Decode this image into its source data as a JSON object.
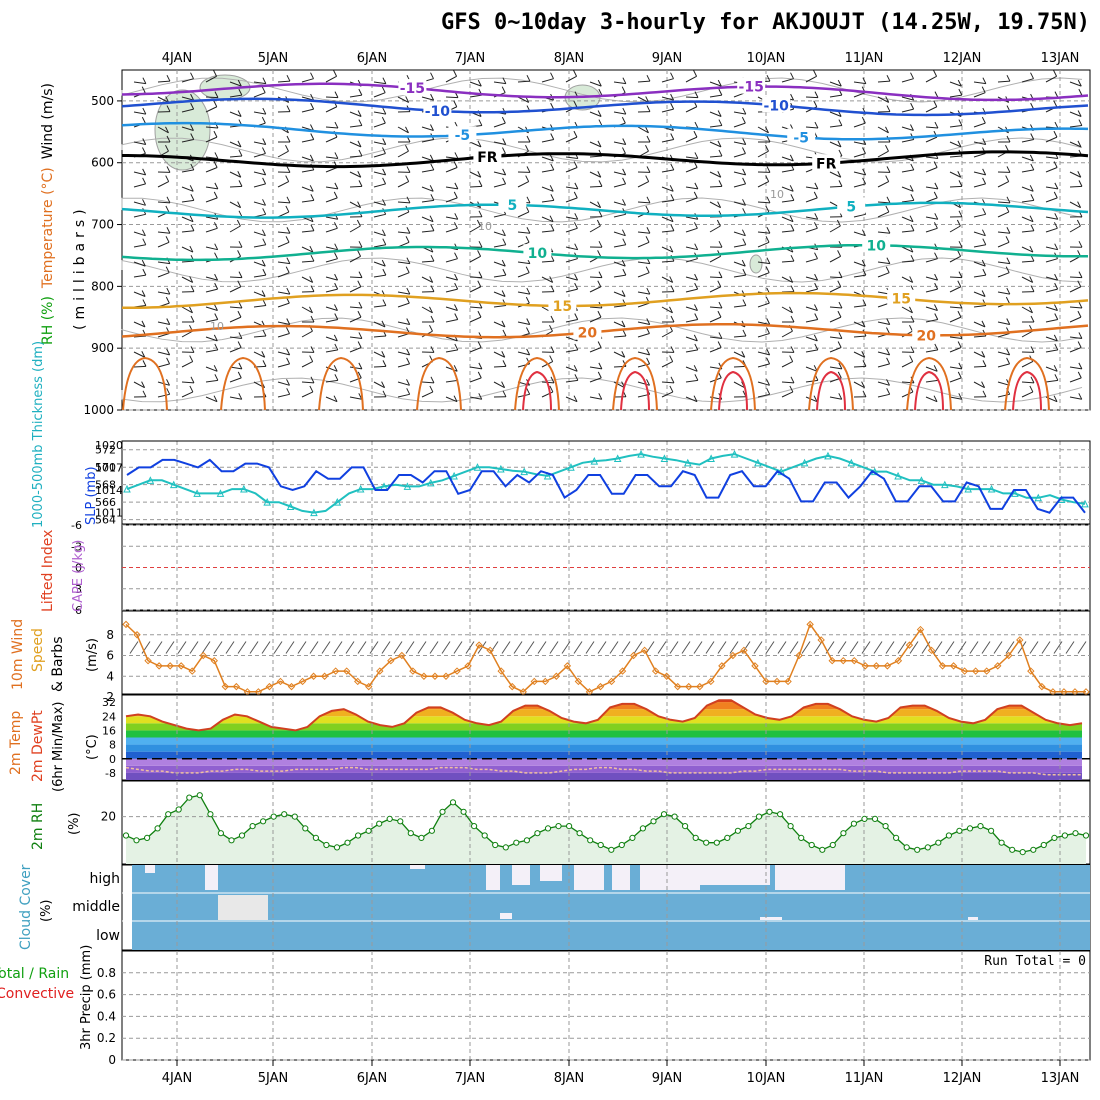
{
  "title": "GFS 0~10day 3-hourly for AKJOUJT (14.25W, 19.75N)",
  "dates": [
    "4JAN",
    "5JAN",
    "6JAN",
    "7JAN",
    "8JAN",
    "9JAN",
    "10JAN",
    "11JAN",
    "12JAN",
    "13JAN"
  ],
  "run_total": "Run Total = 0",
  "chart_data": [
    {
      "type": "heatmap",
      "panel": "upper-air",
      "ylabel_parts": [
        {
          "text": "Wind (m/s)",
          "color": "#000000"
        },
        {
          "text": "Temperature (°C)",
          "color": "#e07020"
        },
        {
          "text": "RH (%)",
          "color": "#10a010"
        }
      ],
      "ylabel_units": "(millibars)",
      "y_ticks": [
        "500",
        "600",
        "700",
        "800",
        "900",
        "1000"
      ],
      "ylim": [
        450,
        1000
      ],
      "y_scale": "reversed",
      "isotherms": [
        {
          "label": "-15",
          "level_mb": 480,
          "color": "#8a2fc0"
        },
        {
          "label": "-10",
          "level_mb": 505,
          "color": "#2050d0"
        },
        {
          "label": "-5",
          "level_mb": 545,
          "color": "#2090e0"
        },
        {
          "label": "FR",
          "level_mb": 598,
          "color": "#000000"
        },
        {
          "label": "5",
          "level_mb": 680,
          "color": "#10b0c0"
        },
        {
          "label": "10",
          "level_mb": 748,
          "color": "#10b090"
        },
        {
          "label": "15",
          "level_mb": 825,
          "color": "#e0a020"
        },
        {
          "label": "20",
          "level_mb": 875,
          "color": "#e07020"
        }
      ],
      "rh_labels": [
        "10",
        "10",
        "10",
        "10"
      ]
    },
    {
      "type": "line",
      "panel": "slp-thickness",
      "ylabel_left": "1000-500mb Thickness (dm)",
      "ylabel_right": "SLP (mb)",
      "left_ticks": [
        "564",
        "566",
        "568",
        "570",
        "572"
      ],
      "right_ticks": [
        "1011",
        "1014",
        "1017",
        "1020"
      ],
      "series": [
        {
          "name": "SLP (mb)",
          "color": "#1040e0",
          "values": [
            1016,
            1017,
            1017,
            1018,
            1018,
            1017.5,
            1017,
            1018,
            1016.5,
            1016.5,
            1017.5,
            1017.5,
            1017,
            1014.5,
            1014,
            1014.5,
            1016.5,
            1015.5,
            1015.5,
            1017,
            1017,
            1014,
            1014,
            1016,
            1016,
            1015,
            1016.5,
            1016.5,
            1013.5,
            1014,
            1016.5,
            1016.5,
            1014.5,
            1016,
            1015,
            1016.5,
            1016,
            1013,
            1014,
            1016,
            1016,
            1013.5,
            1013.5,
            1016,
            1016,
            1014.5,
            1014.5,
            1016.5,
            1016,
            1013,
            1013,
            1016,
            1016.5,
            1014.5,
            1014.5,
            1016.5,
            1015.5,
            1012.5,
            1012.5,
            1015,
            1015,
            1013,
            1014.5,
            1016.5,
            1015.5,
            1012.5,
            1012.5,
            1014.5,
            1014.5,
            1012.5,
            1012.5,
            1015,
            1014.5,
            1011.5,
            1011.5,
            1014,
            1014,
            1011.5,
            1011,
            1013,
            1013,
            1011
          ]
        },
        {
          "name": "Thickness (dm)",
          "color": "#20c0c0",
          "values": [
            567.5,
            568,
            568.5,
            568.5,
            568,
            567.5,
            567,
            567,
            567,
            567.5,
            567.5,
            567,
            566,
            566,
            565.5,
            565,
            564.8,
            565,
            566,
            567,
            567.5,
            567.5,
            567.8,
            568,
            567.8,
            567.8,
            568.2,
            568.5,
            569,
            569.5,
            570,
            570,
            569.8,
            569.6,
            569.5,
            569.2,
            569,
            569.5,
            570,
            570.5,
            570.7,
            570.8,
            571,
            571.3,
            571.5,
            571.2,
            571,
            570.8,
            570.5,
            570.3,
            571,
            571.3,
            571.5,
            571,
            570.5,
            570,
            569.5,
            570,
            570.5,
            571,
            571.3,
            571,
            570.5,
            570,
            569.5,
            569.5,
            569,
            568.5,
            568.5,
            568,
            568,
            567.8,
            567.5,
            567.5,
            567.5,
            567,
            567,
            566.5,
            566.5,
            566.8,
            566.3,
            566,
            565.8
          ]
        }
      ]
    },
    {
      "type": "line",
      "panel": "instability",
      "ylabel_parts": [
        {
          "text": "Lifted Index",
          "color": "#e04020"
        },
        {
          "text": "CAPE (J/kg)",
          "color": "#b060d0"
        }
      ],
      "y_ticks": [
        "-6",
        "-3",
        "0",
        "3",
        "6"
      ],
      "ylim": [
        6,
        -6
      ],
      "series": []
    },
    {
      "type": "line",
      "panel": "10m-wind",
      "ylabel_parts": [
        {
          "text": "10m Wind",
          "color": "#e07020"
        },
        {
          "text": "Speed",
          "color": "#e0a020"
        },
        {
          "text": "& Barbs",
          "color": "#000000"
        }
      ],
      "ylabel_units": "(m/s)",
      "y_ticks": [
        "2",
        "4",
        "6",
        "8"
      ],
      "ylim": [
        2,
        10
      ],
      "series": [
        {
          "name": "10m Wind Speed",
          "color": "#e08020",
          "values": [
            9,
            8,
            5.5,
            5,
            5,
            5,
            4.5,
            6,
            5.5,
            3,
            3,
            2.5,
            2.5,
            3,
            3.5,
            3,
            3.5,
            4,
            4,
            4.5,
            4.5,
            3.5,
            3,
            4.5,
            5.5,
            6,
            4.5,
            4,
            4,
            4,
            4.5,
            5,
            7,
            6.5,
            4.5,
            3,
            2.5,
            3.5,
            3.5,
            4,
            5,
            3.5,
            2.5,
            3,
            3.5,
            4.5,
            6,
            6.5,
            4.5,
            4,
            3,
            3,
            3,
            3.5,
            5,
            6,
            6.5,
            5,
            3.5,
            3.5,
            3.5,
            6,
            9,
            7.5,
            5.5,
            5.5,
            5.5,
            5,
            5,
            5,
            5.5,
            7,
            8.5,
            6.5,
            5,
            5,
            4.5,
            4.5,
            4.5,
            5,
            6,
            7.5,
            4.5,
            3,
            2.5,
            2.5,
            2.5,
            2.5
          ]
        }
      ]
    },
    {
      "type": "area",
      "panel": "2m-temp",
      "ylabel_parts": [
        {
          "text": "2m Temp",
          "color": "#e07020"
        },
        {
          "text": "2m DewPt",
          "color": "#e04020"
        },
        {
          "text": "(6hr Min/Max)",
          "color": "#000000"
        }
      ],
      "ylabel_units": "(°C)",
      "y_ticks": [
        "-8",
        "0",
        "8",
        "16",
        "24",
        "32"
      ],
      "ylim": [
        -12,
        36
      ],
      "series": [
        {
          "name": "2m Temp",
          "color": "#d04020",
          "values": [
            24,
            25,
            24,
            21,
            19,
            17,
            16,
            17,
            22,
            25,
            24,
            21,
            18,
            17,
            16,
            18,
            24,
            27,
            28,
            25,
            21,
            19,
            18,
            20,
            26,
            29,
            29,
            26,
            22,
            20,
            19,
            21,
            27,
            30,
            30,
            27,
            23,
            21,
            20,
            22,
            29,
            31,
            31,
            28,
            24,
            22,
            21,
            23,
            30,
            33,
            33,
            29,
            25,
            23,
            22,
            24,
            29,
            31,
            31,
            28,
            24,
            22,
            21,
            23,
            29,
            30,
            30,
            27,
            23,
            21,
            20,
            22,
            28,
            30,
            30,
            26,
            22,
            20,
            19,
            20
          ]
        },
        {
          "name": "2m DewPt",
          "color": "#a05030",
          "values": [
            -5,
            -6,
            -7,
            -7,
            -8,
            -8,
            -8,
            -7,
            -7,
            -6,
            -6,
            -7,
            -7,
            -7,
            -6,
            -6,
            -6,
            -6,
            -5,
            -5,
            -6,
            -6,
            -6,
            -6,
            -6,
            -6,
            -5,
            -5,
            -5,
            -6,
            -6,
            -7,
            -7,
            -8,
            -8,
            -8,
            -7,
            -6,
            -6,
            -5,
            -5,
            -6,
            -6,
            -7,
            -7,
            -8,
            -8,
            -8,
            -8,
            -8,
            -8,
            -7,
            -7,
            -6,
            -6,
            -6,
            -6,
            -6,
            -6,
            -6,
            -7,
            -7,
            -7,
            -8,
            -8,
            -8,
            -8,
            -8,
            -8,
            -7,
            -7,
            -7,
            -7,
            -8,
            -8,
            -8,
            -9,
            -9,
            -9,
            -9
          ]
        }
      ]
    },
    {
      "type": "area",
      "panel": "2m-rh",
      "ylabel": "2m RH",
      "ylabel_units": "(%)",
      "y_ticks": [
        "20"
      ],
      "ylim": [
        0,
        35
      ],
      "series": [
        {
          "name": "2m RH",
          "color": "#108010",
          "values": [
            12,
            10,
            11,
            15,
            21,
            23,
            28,
            29,
            21,
            13,
            10,
            12,
            16,
            18,
            20,
            21,
            20,
            15,
            11,
            8,
            7,
            9,
            12,
            14,
            17,
            19,
            18,
            13,
            11,
            14,
            22,
            26,
            22,
            16,
            12,
            8,
            7,
            9,
            10,
            13,
            15,
            16,
            16,
            13,
            10,
            8,
            6,
            8,
            11,
            15,
            18,
            21,
            20,
            16,
            11,
            9,
            9,
            11,
            14,
            16,
            20,
            22,
            21,
            16,
            11,
            8,
            6,
            8,
            13,
            17,
            19,
            19,
            16,
            11,
            7,
            6,
            7,
            9,
            12,
            14,
            15,
            16,
            14,
            9,
            6,
            5,
            6,
            8,
            11,
            12,
            13,
            12
          ]
        }
      ]
    },
    {
      "type": "heatmap",
      "panel": "cloud-cover",
      "ylabel": "Cloud Cover",
      "ylabel_units": "(%)",
      "levels": [
        "high",
        "middle",
        "low"
      ]
    },
    {
      "type": "bar",
      "panel": "precip",
      "ylabel_parts": [
        {
          "text": "Total / Rain",
          "color": "#10a010"
        },
        {
          "text": "Convective",
          "color": "#e02020"
        }
      ],
      "ylabel": "3hr Precip (mm)",
      "y_ticks": [
        "0",
        "0.2",
        "0.4",
        "0.6",
        "0.8"
      ],
      "ylim": [
        0,
        1
      ],
      "values": []
    }
  ]
}
